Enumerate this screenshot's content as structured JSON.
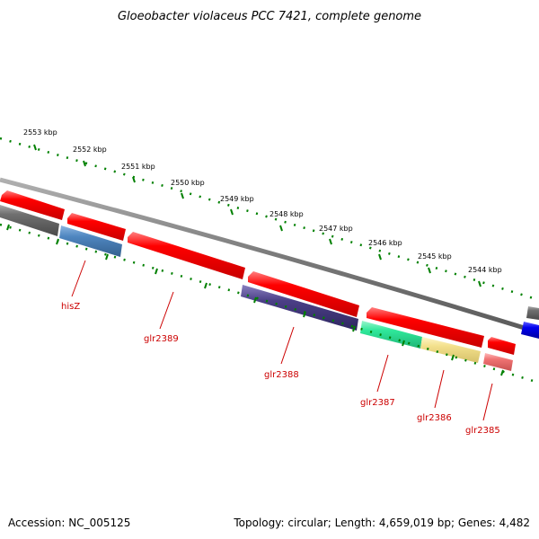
{
  "title": "Gloeobacter violaceus PCC 7421, complete genome",
  "accession": "Accession: NC_005125",
  "summary": "Topology: circular; Length: 4,659,019 bp; Genes: 4,482",
  "ruler_ticks": [
    "2553 kbp",
    "2552 kbp",
    "2551 kbp",
    "2550 kbp",
    "2549 kbp",
    "2548 kbp",
    "2547 kbp",
    "2546 kbp",
    "2545 kbp",
    "2544 kbp"
  ],
  "gene_labels": [
    "hisZ",
    "glr2389",
    "glr2388",
    "glr2387",
    "glr2386",
    "glr2385"
  ],
  "colors": {
    "cds_forward": "#ff0000",
    "cds_reverse_gray": "#707070",
    "hisZ_feature": "#4f86c0",
    "glr2388_feature": "#4b3f86",
    "glr2387_feature": "#2fe89a",
    "glr2386_feature": "#f3e08c",
    "glr2385_feature": "#ef7373",
    "blue_feature": "#0000ee",
    "backbone": "#808080",
    "tick_green": "#008000",
    "label_red": "#cc0000"
  }
}
